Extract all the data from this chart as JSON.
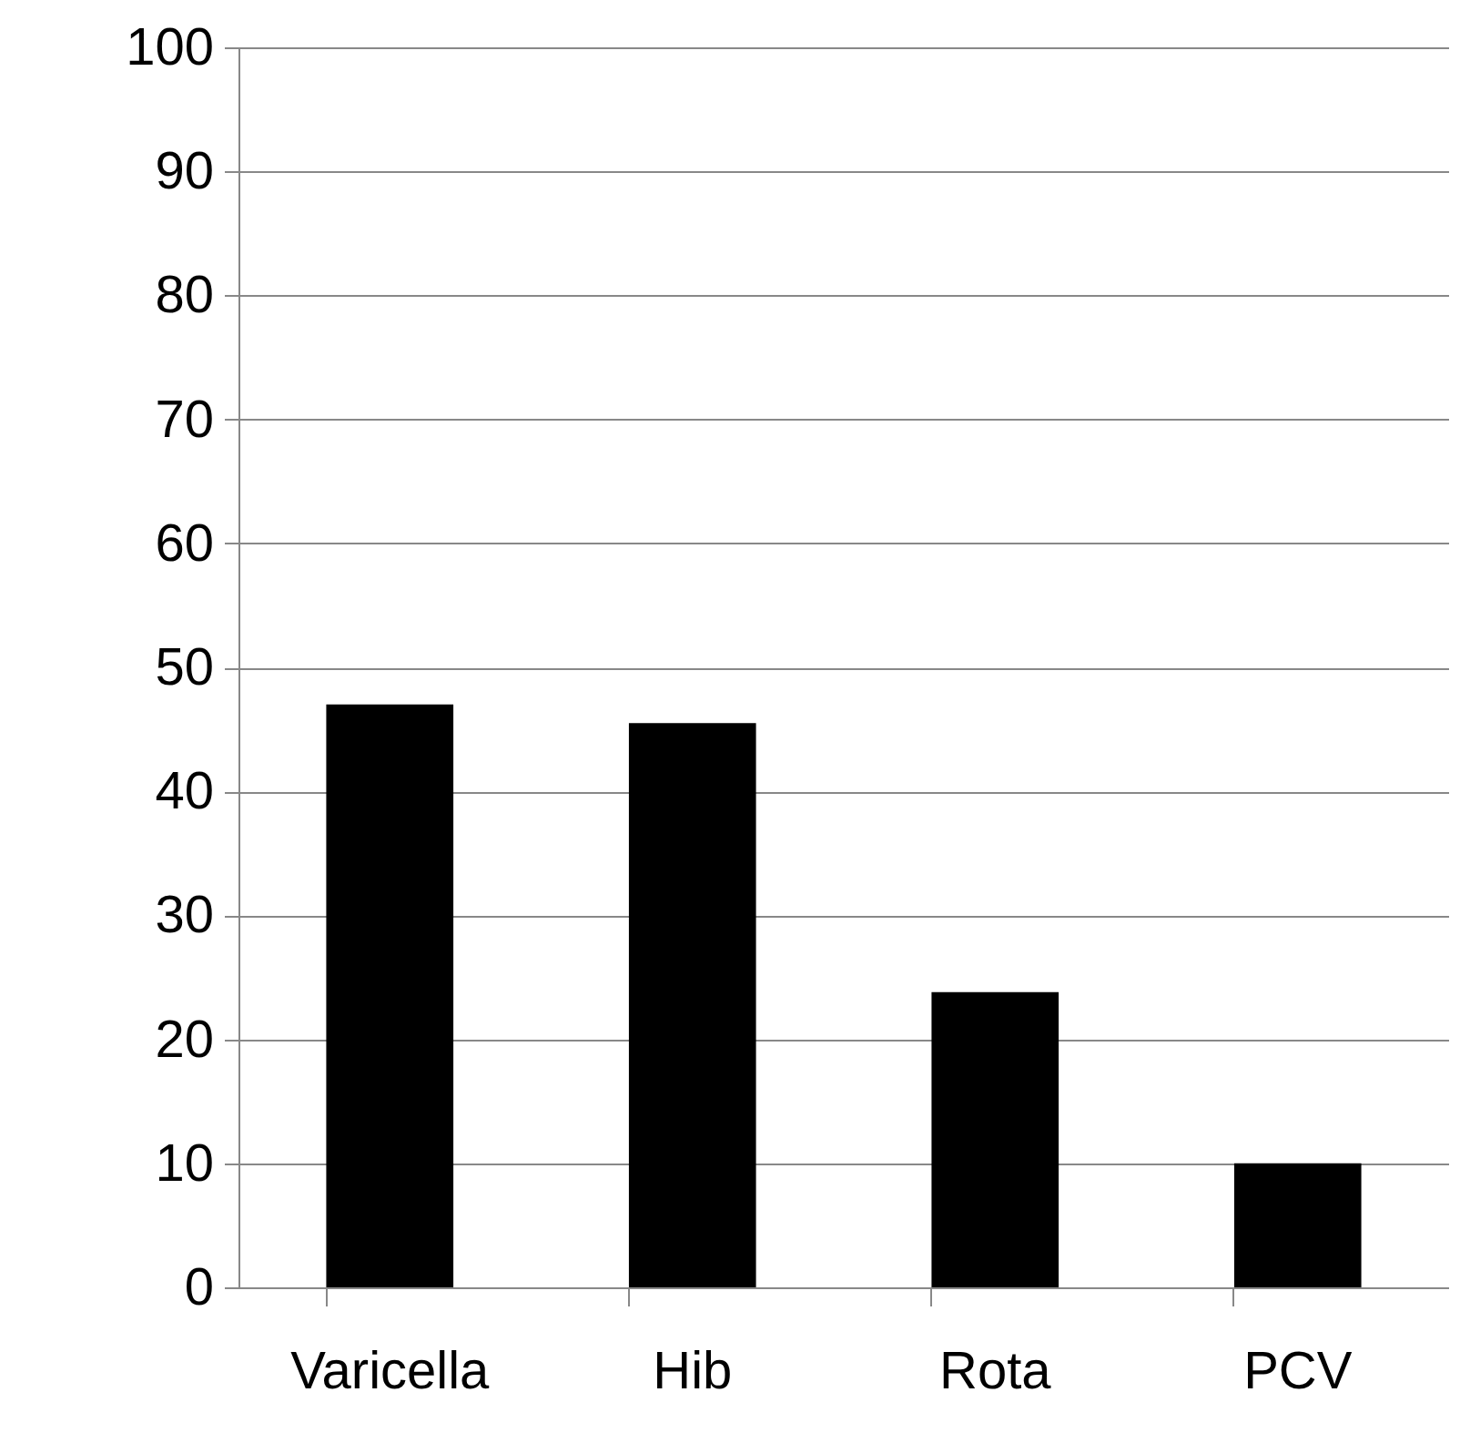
{
  "chart_data": {
    "type": "bar",
    "categories": [
      "Varicella",
      "Hib",
      "Rota",
      "PCV"
    ],
    "values": [
      47,
      45.5,
      23.8,
      10
    ],
    "color": "#000000",
    "ylim": [
      0,
      100
    ],
    "yticks": [
      0,
      10,
      20,
      30,
      40,
      50,
      60,
      70,
      80,
      90,
      100
    ],
    "grid": "y"
  }
}
